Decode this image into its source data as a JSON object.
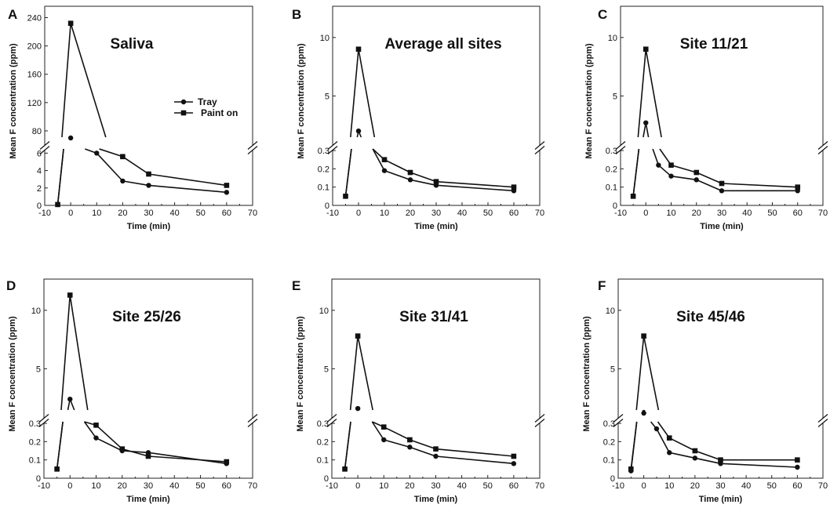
{
  "chart_data": [
    {
      "type": "line",
      "panel_label": "A",
      "title": "Saliva",
      "xlabel": "Time (min)",
      "ylabel": "Mean F concentration (ppm)",
      "xlim": [
        -10,
        70
      ],
      "xticks": [
        -10,
        0,
        10,
        20,
        30,
        40,
        50,
        60,
        70
      ],
      "broken_y_axis": true,
      "upper_ylim": [
        60,
        245
      ],
      "upper_yticks": [
        80,
        120,
        160,
        200,
        240
      ],
      "lower_ylim": [
        0,
        6.3
      ],
      "lower_yticks": [
        0,
        2,
        4,
        6
      ],
      "legend": {
        "position": "center-right",
        "entries": [
          "Tray",
          "Paint on"
        ]
      },
      "series": [
        {
          "name": "Tray",
          "marker": "circle",
          "x": [
            -5,
            0,
            10,
            20,
            30,
            60
          ],
          "y": [
            0.1,
            70,
            6.0,
            2.8,
            2.3,
            1.5
          ]
        },
        {
          "name": "Paint on",
          "marker": "square",
          "x": [
            -5,
            0,
            20,
            30,
            60
          ],
          "y": [
            0.1,
            232,
            5.6,
            3.6,
            2.3
          ]
        }
      ]
    },
    {
      "type": "line",
      "panel_label": "B",
      "title": "Average all sites",
      "xlabel": "Time (min)",
      "ylabel": "Mean F concentration (ppm)",
      "xlim": [
        -10,
        70
      ],
      "xticks": [
        -10,
        0,
        10,
        20,
        30,
        40,
        50,
        60,
        70
      ],
      "broken_y_axis": true,
      "upper_ylim": [
        0.8,
        12
      ],
      "upper_yticks": [
        5,
        10
      ],
      "lower_ylim": [
        0,
        0.3
      ],
      "lower_yticks": [
        0,
        0.1,
        0.2,
        0.3
      ],
      "series": [
        {
          "name": "Tray",
          "marker": "circle",
          "x": [
            -5,
            0,
            10,
            20,
            30,
            60
          ],
          "y": [
            0.05,
            2.0,
            0.19,
            0.14,
            0.11,
            0.08
          ]
        },
        {
          "name": "Paint on",
          "marker": "square",
          "x": [
            -5,
            0,
            10,
            20,
            30,
            60
          ],
          "y": [
            0.05,
            9.0,
            0.25,
            0.18,
            0.13,
            0.1
          ]
        }
      ]
    },
    {
      "type": "line",
      "panel_label": "C",
      "title": "Site 11/21",
      "xlabel": "Time (min)",
      "ylabel": "Mean F concentration (ppm)",
      "xlim": [
        -10,
        70
      ],
      "xticks": [
        -10,
        0,
        10,
        20,
        30,
        40,
        50,
        60,
        70
      ],
      "broken_y_axis": true,
      "upper_ylim": [
        0.8,
        12
      ],
      "upper_yticks": [
        5,
        10
      ],
      "lower_ylim": [
        0,
        0.3
      ],
      "lower_yticks": [
        0,
        0.1,
        0.2,
        0.3
      ],
      "series": [
        {
          "name": "Tray",
          "marker": "circle",
          "x": [
            -5,
            0,
            5,
            10,
            20,
            30,
            60
          ],
          "y": [
            0.05,
            2.7,
            0.22,
            0.16,
            0.14,
            0.08,
            0.08
          ]
        },
        {
          "name": "Paint on",
          "marker": "square",
          "x": [
            -5,
            0,
            10,
            20,
            30,
            60
          ],
          "y": [
            0.05,
            9.0,
            0.22,
            0.18,
            0.12,
            0.1
          ]
        }
      ]
    },
    {
      "type": "line",
      "panel_label": "D",
      "title": "Site 25/26",
      "xlabel": "Time (min)",
      "ylabel": "Mean F concentration (ppm)",
      "xlim": [
        -10,
        70
      ],
      "xticks": [
        -10,
        0,
        10,
        20,
        30,
        40,
        50,
        60,
        70
      ],
      "broken_y_axis": true,
      "upper_ylim": [
        0.8,
        12
      ],
      "upper_yticks": [
        5,
        10
      ],
      "lower_ylim": [
        0,
        0.3
      ],
      "lower_yticks": [
        0,
        0.1,
        0.2,
        0.3
      ],
      "series": [
        {
          "name": "Tray",
          "marker": "circle",
          "x": [
            -5,
            0,
            10,
            20,
            30,
            60
          ],
          "y": [
            0.05,
            2.4,
            0.22,
            0.15,
            0.14,
            0.08
          ]
        },
        {
          "name": "Paint on",
          "marker": "square",
          "x": [
            -5,
            0,
            10,
            20,
            30,
            60
          ],
          "y": [
            0.05,
            11.3,
            0.29,
            0.16,
            0.12,
            0.09
          ]
        }
      ]
    },
    {
      "type": "line",
      "panel_label": "E",
      "title": "Site 31/41",
      "xlabel": "Time (min)",
      "ylabel": "Mean F concentration (ppm)",
      "xlim": [
        -10,
        70
      ],
      "xticks": [
        -10,
        0,
        10,
        20,
        30,
        40,
        50,
        60,
        70
      ],
      "broken_y_axis": true,
      "upper_ylim": [
        0.8,
        12
      ],
      "upper_yticks": [
        5,
        10
      ],
      "lower_ylim": [
        0,
        0.3
      ],
      "lower_yticks": [
        0,
        0.1,
        0.2,
        0.3
      ],
      "series": [
        {
          "name": "Tray",
          "marker": "circle",
          "x": [
            -5,
            0,
            10,
            20,
            30,
            60
          ],
          "y": [
            0.05,
            1.6,
            0.21,
            0.17,
            0.12,
            0.08
          ]
        },
        {
          "name": "Paint on",
          "marker": "square",
          "x": [
            -5,
            0,
            10,
            20,
            30,
            60
          ],
          "y": [
            0.05,
            7.8,
            0.28,
            0.21,
            0.16,
            0.12
          ]
        }
      ]
    },
    {
      "type": "line",
      "panel_label": "F",
      "title": "Site 45/46",
      "xlabel": "Time (min)",
      "ylabel": "Mean F concentration (ppm)",
      "xlim": [
        -10,
        70
      ],
      "xticks": [
        -10,
        0,
        10,
        20,
        30,
        40,
        50,
        60,
        70
      ],
      "broken_y_axis": true,
      "upper_ylim": [
        0.8,
        12
      ],
      "upper_yticks": [
        5,
        10
      ],
      "lower_ylim": [
        0,
        0.3
      ],
      "lower_yticks": [
        0,
        0.1,
        0.2,
        0.3
      ],
      "series": [
        {
          "name": "Tray",
          "marker": "circle",
          "x": [
            -5,
            0,
            5,
            10,
            20,
            30,
            60
          ],
          "y": [
            0.04,
            1.2,
            0.27,
            0.14,
            0.11,
            0.08,
            0.06
          ]
        },
        {
          "name": "Paint on",
          "marker": "square",
          "x": [
            -5,
            0,
            10,
            20,
            30,
            60
          ],
          "y": [
            0.05,
            7.8,
            0.22,
            0.15,
            0.1,
            0.1
          ]
        }
      ]
    }
  ]
}
